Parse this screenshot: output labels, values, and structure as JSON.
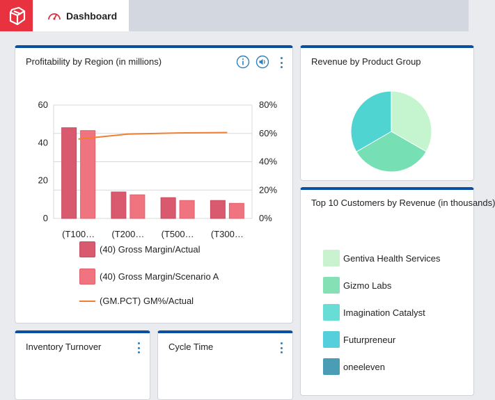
{
  "tab": {
    "label": "Dashboard"
  },
  "panels": {
    "profitability": {
      "title": "Profitability by Region (in millions)"
    },
    "revenue_group": {
      "title": "Revenue by Product Group"
    },
    "top_customers": {
      "title": "Top 10 Customers by Revenue (in thousands)",
      "items": [
        {
          "label": "Gentiva Health Services",
          "color": "#c8f2d0"
        },
        {
          "label": "Gizmo Labs",
          "color": "#86e0b6"
        },
        {
          "label": "Imagination Catalyst",
          "color": "#67ddd6"
        },
        {
          "label": "Futurpreneur",
          "color": "#55cfdb"
        },
        {
          "label": "oneeleven",
          "color": "#4a9db5"
        }
      ]
    },
    "inventory": {
      "title": "Inventory Turnover"
    },
    "cycle": {
      "title": "Cycle Time"
    }
  },
  "chart_data": [
    {
      "type": "bar",
      "title": "Profitability by Region (in millions)",
      "categories": [
        "(T100…",
        "(T200…",
        "(T500…",
        "(T300…"
      ],
      "series": [
        {
          "name": "(40) Gross Margin/Actual",
          "type": "bar",
          "values": [
            48,
            14,
            11,
            9.5
          ],
          "color": "#d9596e"
        },
        {
          "name": "(40) Gross Margin/Scenario A",
          "type": "bar",
          "values": [
            46.5,
            12.5,
            9.5,
            8
          ],
          "color": "#f0747f"
        },
        {
          "name": "(GM.PCT) GM%/Actual",
          "type": "line",
          "axis": "right",
          "values": [
            56,
            59.5,
            60.3,
            60.6
          ],
          "color": "#f07f2f"
        }
      ],
      "ylim": [
        0,
        60
      ],
      "y_ticks": [
        "60",
        "40",
        "20",
        "0"
      ],
      "y2lim": [
        0,
        80
      ],
      "y2_ticks": [
        "80%",
        "60%",
        "40%",
        "20%",
        "0%"
      ],
      "grid": true,
      "legend_position": "bottom"
    },
    {
      "type": "pie",
      "title": "Revenue by Product Group",
      "values": [
        33.3,
        33.3,
        33.4
      ],
      "colors": [
        "#c4f5cf",
        "#76dfb4",
        "#4fd4d2"
      ]
    }
  ]
}
